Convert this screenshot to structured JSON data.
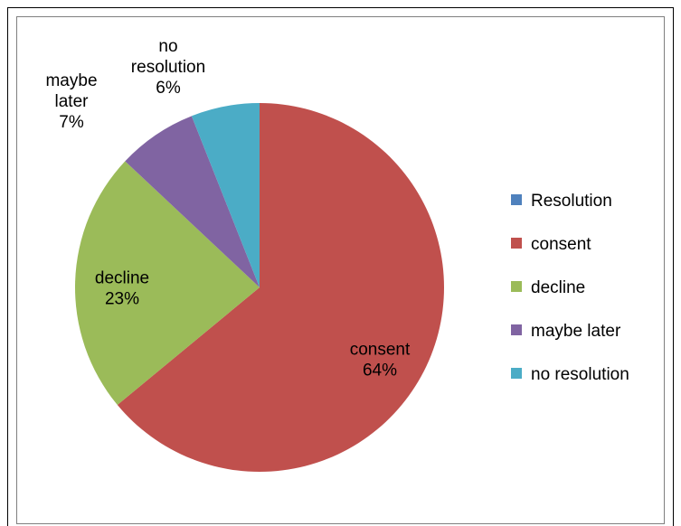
{
  "chart_data": {
    "type": "pie",
    "categories": [
      "Resolution",
      "consent",
      "decline",
      "maybe later",
      "no resolution"
    ],
    "values": [
      0,
      64,
      23,
      7,
      6
    ],
    "value_labels": [
      "",
      "64%",
      "23%",
      "7%",
      "6%"
    ],
    "slice_labels": [
      [],
      [
        "consent",
        "64%"
      ],
      [
        "decline",
        "23%"
      ],
      [
        "maybe",
        "later",
        "7%"
      ],
      [
        "no",
        "resolution",
        "6%"
      ]
    ],
    "colors": [
      "#4f81bd",
      "#c0504d",
      "#9bbb59",
      "#8064a2",
      "#4bacc6"
    ],
    "legend_position": "right"
  }
}
